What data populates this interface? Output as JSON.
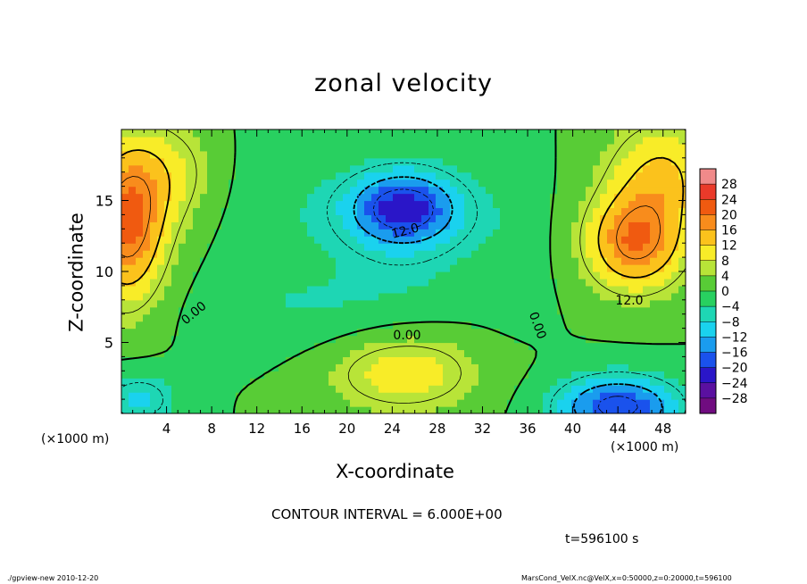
{
  "chart_data": {
    "type": "heatmap",
    "title": "zonal velocity",
    "xlabel": "X-coordinate",
    "ylabel": "Z-coordinate",
    "x_unit_label": "(×1000 m)",
    "xlim": [
      0,
      50
    ],
    "ylim": [
      0,
      20
    ],
    "x_ticks": [
      4,
      8,
      12,
      16,
      20,
      24,
      28,
      32,
      36,
      40,
      44,
      48
    ],
    "y_ticks": [
      5,
      10,
      15
    ],
    "colorbar": {
      "levels": [
        28,
        24,
        20,
        16,
        12,
        8,
        4,
        0,
        -4,
        -8,
        -12,
        -16,
        -20,
        -24,
        -28
      ],
      "labels": [
        "28",
        "24",
        "20",
        "16",
        "12",
        "8",
        "4",
        "0",
        "−4",
        "−8",
        "−12",
        "−16",
        "−20",
        "−24",
        "−28"
      ],
      "colors": [
        "#f08a8a",
        "#ea3a2a",
        "#f05a10",
        "#f88c1c",
        "#fbc21c",
        "#f8ec28",
        "#b8e438",
        "#58cc36",
        "#28d060",
        "#1ed6b4",
        "#1ad2ee",
        "#1a9cee",
        "#1a52ec",
        "#2a16c8",
        "#5a10a0",
        "#700c80"
      ]
    },
    "contour_labels": [
      "0.00",
      "12.0",
      "0.00",
      "12.0",
      "0.00"
    ],
    "contour_interval_text": "CONTOUR INTERVAL = 6.000E+00",
    "time_text": "t=596100 s",
    "field": {
      "bumps": [
        {
          "x": 25,
          "z": 14.5,
          "amp": -20,
          "sx": 5.0,
          "sz": 2.6
        },
        {
          "x": 25,
          "z": 11.5,
          "amp": -4,
          "sx": 9,
          "sz": 6
        },
        {
          "x": 0.5,
          "z": 13,
          "amp": 20,
          "sx": 3.5,
          "sz": 5.5
        },
        {
          "x": 4,
          "z": 17,
          "amp": 8,
          "sx": 5,
          "sz": 4
        },
        {
          "x": 45.5,
          "z": 12,
          "amp": 19,
          "sx": 4.5,
          "sz": 3.5
        },
        {
          "x": 48,
          "z": 17,
          "amp": 12,
          "sx": 5,
          "sz": 4
        },
        {
          "x": 44,
          "z": 0.5,
          "amp": -20,
          "sx": 5.5,
          "sz": 2.2
        },
        {
          "x": 1.5,
          "z": 1,
          "amp": -9,
          "sx": 3.5,
          "sz": 2.0
        },
        {
          "x": 25,
          "z": 3,
          "amp": 11,
          "sx": 7,
          "sz": 3
        },
        {
          "x": 16,
          "z": 7,
          "amp": -3,
          "sx": 10,
          "sz": 3
        },
        {
          "x": 13,
          "z": 15,
          "amp": -3,
          "sx": 5,
          "sz": 6
        },
        {
          "x": 35,
          "z": 13,
          "amp": -2,
          "sx": 3,
          "sz": 6
        }
      ]
    }
  },
  "footer": {
    "left": "./gpview-new   2010-12-20",
    "right": "MarsCond_VelX.nc@VelX,x=0:50000,z=0:20000,t=596100"
  }
}
